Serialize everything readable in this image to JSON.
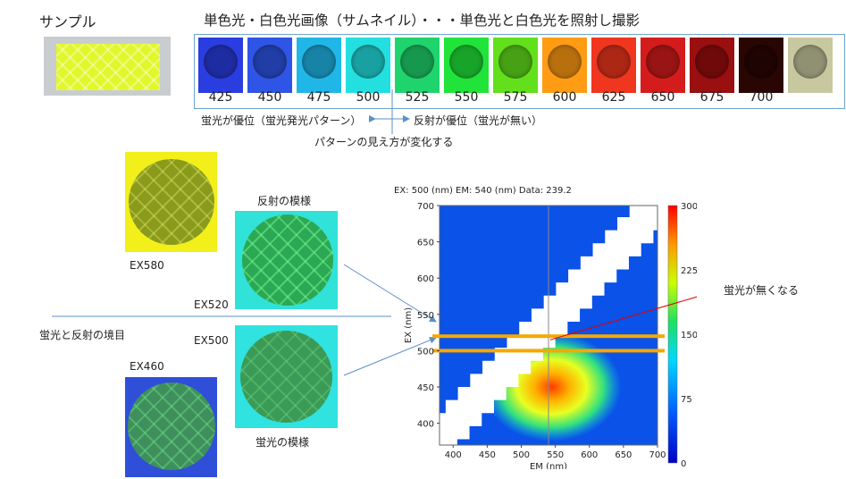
{
  "sample_label": "サンプル",
  "header_title": "単色光・白色光画像（サムネイル）・・・単色光と白色光を照射し撮影",
  "thumbnails": [
    {
      "label": "425",
      "color": "#2a3de0"
    },
    {
      "label": "450",
      "color": "#2f55e6"
    },
    {
      "label": "475",
      "color": "#20b7e8"
    },
    {
      "label": "500",
      "color": "#23dfe0"
    },
    {
      "label": "525",
      "color": "#1fd46c"
    },
    {
      "label": "550",
      "color": "#21e43a"
    },
    {
      "label": "575",
      "color": "#62e01c"
    },
    {
      "label": "600",
      "color": "#ff9c14"
    },
    {
      "label": "625",
      "color": "#f0361e"
    },
    {
      "label": "650",
      "color": "#d51c1c"
    },
    {
      "label": "675",
      "color": "#9a0f0f"
    },
    {
      "label": "700",
      "color": "#2a0603"
    },
    {
      "label": "",
      "color": "#c8c8a0"
    }
  ],
  "annotations": {
    "fluor_dominant": "蛍光が優位（蛍光発光パターン）",
    "refl_dominant": "反射が優位（蛍光が無い）",
    "pattern_change": "パターンの見え方が変化する",
    "refl_pattern": "反射の模様",
    "fluor_pattern": "蛍光の模様",
    "boundary": "蛍光と反射の境目",
    "fluor_vanish": "蛍光が無くなる",
    "ex580": "EX580",
    "ex520": "EX520",
    "ex500": "EX500",
    "ex460": "EX460"
  },
  "chart_data": {
    "type": "heatmap",
    "title": "EX: 500 (nm) EM: 540 (nm) Data: 239.2",
    "xlabel": "EM (nm)",
    "ylabel": "EX (nm)",
    "xlim": [
      380,
      700
    ],
    "ylim": [
      370,
      700
    ],
    "xticks": [
      "400",
      "450",
      "500",
      "550",
      "600",
      "650",
      "700"
    ],
    "yticks": [
      "400",
      "450",
      "500",
      "550",
      "600",
      "650",
      "700"
    ],
    "colorbar": {
      "min": 0,
      "max": 300,
      "ticks": [
        "0",
        "75",
        "150",
        "225",
        "300"
      ]
    },
    "peak": {
      "ex": 440,
      "em": 540,
      "value": 300
    },
    "cursor": {
      "ex": 500,
      "em": 540,
      "value": 239.2
    },
    "highlight_ex": [
      520,
      500
    ]
  }
}
